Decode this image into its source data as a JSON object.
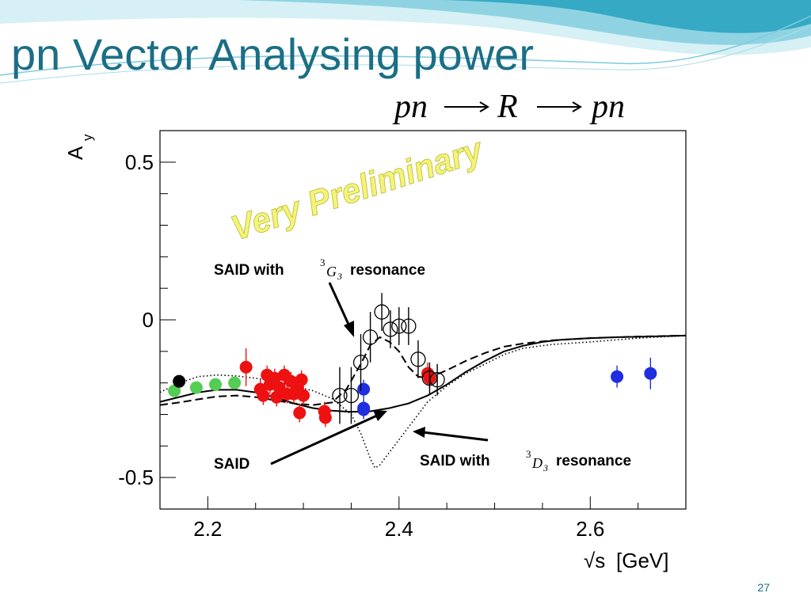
{
  "slide": {
    "title": "pn Vector Analysing power",
    "number": "27"
  },
  "colors": {
    "title": "#1b6e86",
    "wave_light": "#bfe6ee",
    "wave_dark": "#36a9c4",
    "watermark": "#f0f06a",
    "red_points": "#ee1111",
    "green_points": "#55cc55",
    "blue_points": "#1f2ee0",
    "black_points": "#000000"
  },
  "chart_data": {
    "type": "scatter",
    "formula": {
      "pre": "pn",
      "mid": "R",
      "post": "pn"
    },
    "ylabel": {
      "main": "A",
      "sub": "y"
    },
    "xlabel": {
      "root": "√s",
      "unit": "[GeV]"
    },
    "xlim": [
      2.15,
      2.7
    ],
    "ylim": [
      -0.6,
      0.6
    ],
    "x_major_ticks": [
      2.2,
      2.4,
      2.6
    ],
    "x_tick_labels": [
      "2.2",
      "2.4",
      "2.6"
    ],
    "y_major_ticks": [
      0.5,
      0,
      -0.5
    ],
    "y_tick_labels": [
      "0.5",
      "0",
      "-0.5"
    ],
    "watermark": "Very Preliminary",
    "annotations": [
      {
        "id": "g3",
        "pre": "SAID with",
        "sup": "3",
        "letter": "G",
        "sub": "3",
        "post": "resonance"
      },
      {
        "id": "said",
        "text": "SAID"
      },
      {
        "id": "d3",
        "pre": "SAID with",
        "sup": "3",
        "letter": "D",
        "sub": "3",
        "post": "resonance"
      }
    ],
    "series": [
      {
        "style": "filled",
        "color": "red",
        "points": [
          {
            "x": 2.24,
            "y": -0.15,
            "err": 0.06
          },
          {
            "x": 2.255,
            "y": -0.22,
            "err": 0.03
          },
          {
            "x": 2.258,
            "y": -0.24,
            "err": 0.03
          },
          {
            "x": 2.262,
            "y": -0.175,
            "err": 0.03
          },
          {
            "x": 2.265,
            "y": -0.205,
            "err": 0.03
          },
          {
            "x": 2.27,
            "y": -0.185,
            "err": 0.03
          },
          {
            "x": 2.272,
            "y": -0.245,
            "err": 0.03
          },
          {
            "x": 2.275,
            "y": -0.215,
            "err": 0.03
          },
          {
            "x": 2.28,
            "y": -0.175,
            "err": 0.03
          },
          {
            "x": 2.283,
            "y": -0.235,
            "err": 0.03
          },
          {
            "x": 2.287,
            "y": -0.195,
            "err": 0.03
          },
          {
            "x": 2.29,
            "y": -0.235,
            "err": 0.03
          },
          {
            "x": 2.294,
            "y": -0.215,
            "err": 0.03
          },
          {
            "x": 2.296,
            "y": -0.295,
            "err": 0.03
          },
          {
            "x": 2.298,
            "y": -0.19,
            "err": 0.03
          },
          {
            "x": 2.3,
            "y": -0.24,
            "err": 0.03
          },
          {
            "x": 2.322,
            "y": -0.29,
            "err": 0.03
          },
          {
            "x": 2.323,
            "y": -0.31,
            "err": 0.03
          },
          {
            "x": 2.43,
            "y": -0.17,
            "err": 0.035
          },
          {
            "x": 2.432,
            "y": -0.185,
            "err": 0.035
          }
        ]
      },
      {
        "style": "filled",
        "color": "green",
        "points": [
          {
            "x": 2.165,
            "y": -0.225,
            "err": 0.01
          },
          {
            "x": 2.188,
            "y": -0.215,
            "err": 0.01
          },
          {
            "x": 2.208,
            "y": -0.205,
            "err": 0.01
          },
          {
            "x": 2.228,
            "y": -0.2,
            "err": 0.01
          }
        ]
      },
      {
        "style": "filled",
        "color": "black",
        "points": [
          {
            "x": 2.17,
            "y": -0.195,
            "err": 0.01
          }
        ]
      },
      {
        "style": "filled",
        "color": "blue",
        "points": [
          {
            "x": 2.363,
            "y": -0.22,
            "err": 0.03
          },
          {
            "x": 2.363,
            "y": -0.28,
            "err": 0.03
          },
          {
            "x": 2.363,
            "y": -0.285,
            "err": 0.03
          },
          {
            "x": 2.628,
            "y": -0.18,
            "err": 0.035
          },
          {
            "x": 2.663,
            "y": -0.17,
            "err": 0.05
          }
        ]
      },
      {
        "style": "open",
        "color": "black",
        "points": [
          {
            "x": 2.338,
            "y": -0.24,
            "err": 0.09
          },
          {
            "x": 2.35,
            "y": -0.24,
            "err": 0.09
          },
          {
            "x": 2.36,
            "y": -0.135,
            "err": 0.09
          },
          {
            "x": 2.37,
            "y": -0.055,
            "err": 0.08
          },
          {
            "x": 2.382,
            "y": 0.025,
            "err": 0.06
          },
          {
            "x": 2.391,
            "y": -0.03,
            "err": 0.06
          },
          {
            "x": 2.4,
            "y": -0.02,
            "err": 0.06
          },
          {
            "x": 2.41,
            "y": -0.02,
            "err": 0.06
          },
          {
            "x": 2.42,
            "y": -0.125,
            "err": 0.06
          },
          {
            "x": 2.432,
            "y": -0.185,
            "err": 0.05
          },
          {
            "x": 2.44,
            "y": -0.19,
            "err": 0.05
          }
        ]
      }
    ],
    "curves": [
      {
        "style": "solid",
        "points": [
          [
            2.15,
            -0.26
          ],
          [
            2.17,
            -0.245
          ],
          [
            2.19,
            -0.23
          ],
          [
            2.21,
            -0.222
          ],
          [
            2.23,
            -0.222
          ],
          [
            2.25,
            -0.23
          ],
          [
            2.27,
            -0.245
          ],
          [
            2.29,
            -0.265
          ],
          [
            2.31,
            -0.28
          ],
          [
            2.33,
            -0.288
          ],
          [
            2.35,
            -0.292
          ],
          [
            2.37,
            -0.29
          ],
          [
            2.39,
            -0.28
          ],
          [
            2.41,
            -0.265
          ],
          [
            2.43,
            -0.24
          ],
          [
            2.45,
            -0.205
          ],
          [
            2.47,
            -0.165
          ],
          [
            2.49,
            -0.13
          ],
          [
            2.51,
            -0.1
          ],
          [
            2.53,
            -0.082
          ],
          [
            2.55,
            -0.07
          ],
          [
            2.57,
            -0.063
          ],
          [
            2.6,
            -0.058
          ],
          [
            2.63,
            -0.055
          ],
          [
            2.66,
            -0.053
          ],
          [
            2.7,
            -0.05
          ]
        ]
      },
      {
        "style": "dashed",
        "points": [
          [
            2.15,
            -0.27
          ],
          [
            2.17,
            -0.262
          ],
          [
            2.19,
            -0.252
          ],
          [
            2.21,
            -0.243
          ],
          [
            2.23,
            -0.24
          ],
          [
            2.25,
            -0.245
          ],
          [
            2.27,
            -0.255
          ],
          [
            2.29,
            -0.265
          ],
          [
            2.31,
            -0.27
          ],
          [
            2.33,
            -0.262
          ],
          [
            2.345,
            -0.22
          ],
          [
            2.36,
            -0.14
          ],
          [
            2.37,
            -0.08
          ],
          [
            2.38,
            -0.055
          ],
          [
            2.39,
            -0.07
          ],
          [
            2.4,
            -0.1
          ],
          [
            2.41,
            -0.15
          ],
          [
            2.42,
            -0.18
          ],
          [
            2.43,
            -0.185
          ],
          [
            2.45,
            -0.16
          ],
          [
            2.47,
            -0.13
          ],
          [
            2.49,
            -0.105
          ],
          [
            2.51,
            -0.085
          ],
          [
            2.53,
            -0.075
          ],
          [
            2.56,
            -0.065
          ],
          [
            2.6,
            -0.058
          ],
          [
            2.65,
            -0.053
          ],
          [
            2.7,
            -0.05
          ]
        ]
      },
      {
        "style": "dotted",
        "points": [
          [
            2.15,
            -0.23
          ],
          [
            2.17,
            -0.2
          ],
          [
            2.19,
            -0.18
          ],
          [
            2.21,
            -0.175
          ],
          [
            2.23,
            -0.178
          ],
          [
            2.25,
            -0.185
          ],
          [
            2.27,
            -0.195
          ],
          [
            2.29,
            -0.21
          ],
          [
            2.31,
            -0.225
          ],
          [
            2.33,
            -0.25
          ],
          [
            2.35,
            -0.3
          ],
          [
            2.36,
            -0.36
          ],
          [
            2.37,
            -0.44
          ],
          [
            2.375,
            -0.47
          ],
          [
            2.38,
            -0.46
          ],
          [
            2.39,
            -0.42
          ],
          [
            2.4,
            -0.38
          ],
          [
            2.41,
            -0.34
          ],
          [
            2.42,
            -0.3
          ],
          [
            2.43,
            -0.26
          ],
          [
            2.45,
            -0.21
          ],
          [
            2.47,
            -0.17
          ],
          [
            2.49,
            -0.14
          ],
          [
            2.51,
            -0.11
          ],
          [
            2.53,
            -0.09
          ],
          [
            2.56,
            -0.078
          ],
          [
            2.6,
            -0.07
          ],
          [
            2.65,
            -0.058
          ],
          [
            2.7,
            -0.05
          ]
        ]
      }
    ]
  }
}
